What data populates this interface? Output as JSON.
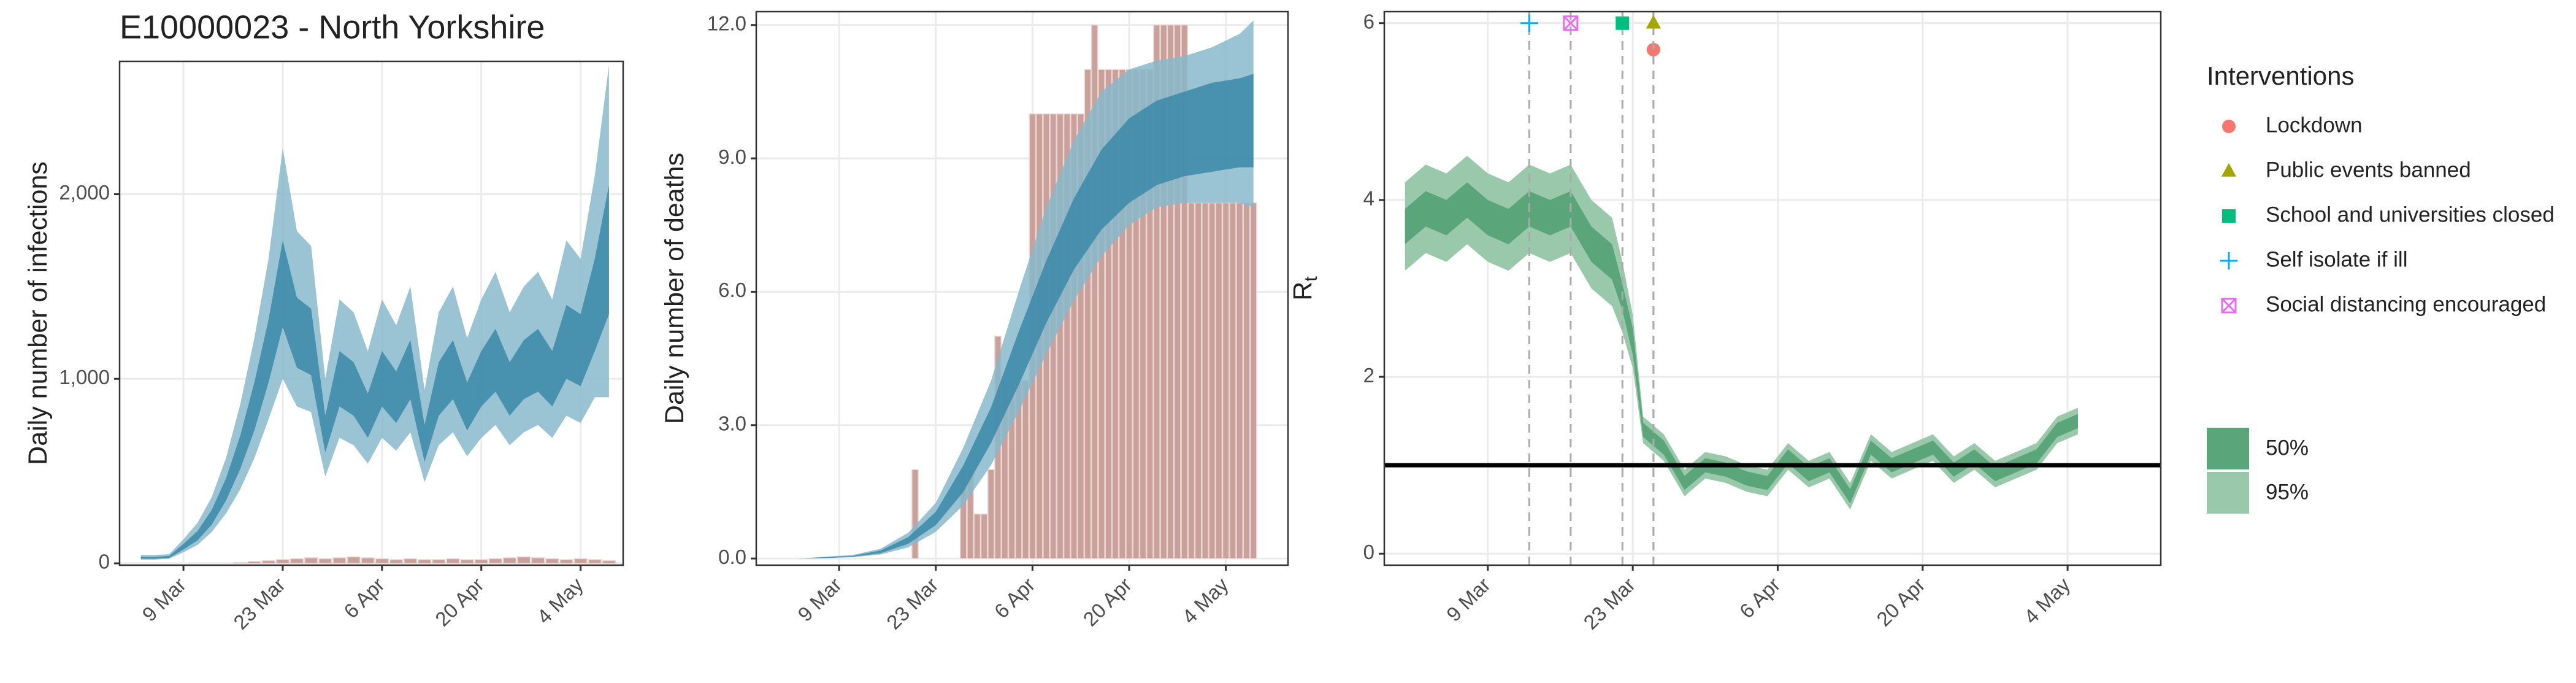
{
  "chart_data": [
    {
      "type": "band-bar",
      "title": "E10000023 - North Yorkshire",
      "ylabel": "Daily number of infections",
      "xlim": [
        "28 Feb",
        "10 May"
      ],
      "xticks": [
        "9 Mar",
        "23 Mar",
        "6 Apr",
        "20 Apr",
        "4 May"
      ],
      "ylim": [
        -10,
        2720
      ],
      "yticks": [
        0,
        {
          "value": 1000,
          "label": "1,000"
        },
        {
          "value": 2000,
          "label": "2,000"
        }
      ],
      "grid": true,
      "x": [
        "3 Mar",
        "5 Mar",
        "7 Mar",
        "9 Mar",
        "11 Mar",
        "13 Mar",
        "15 Mar",
        "17 Mar",
        "19 Mar",
        "21 Mar",
        "23 Mar",
        "25 Mar",
        "27 Mar",
        "29 Mar",
        "31 Mar",
        "2 Apr",
        "4 Apr",
        "6 Apr",
        "8 Apr",
        "10 Apr",
        "12 Apr",
        "14 Apr",
        "16 Apr",
        "18 Apr",
        "20 Apr",
        "22 Apr",
        "24 Apr",
        "26 Apr",
        "28 Apr",
        "30 Apr",
        "2 May",
        "4 May",
        "6 May",
        "8 May"
      ],
      "bars": {
        "color": "#c9a09a",
        "x": [
          "3 Mar",
          "5 Mar",
          "7 Mar",
          "9 Mar",
          "11 Mar",
          "13 Mar",
          "15 Mar",
          "17 Mar",
          "19 Mar",
          "21 Mar",
          "23 Mar",
          "25 Mar",
          "27 Mar",
          "29 Mar",
          "31 Mar",
          "2 Apr",
          "4 Apr",
          "6 Apr",
          "8 Apr",
          "10 Apr",
          "12 Apr",
          "14 Apr",
          "16 Apr",
          "18 Apr",
          "20 Apr",
          "22 Apr",
          "24 Apr",
          "26 Apr",
          "28 Apr",
          "30 Apr",
          "2 May",
          "4 May",
          "6 May",
          "8 May"
        ],
        "values": [
          0,
          0,
          0,
          0,
          0,
          0,
          0,
          5,
          10,
          15,
          20,
          25,
          30,
          25,
          30,
          35,
          30,
          25,
          20,
          25,
          20,
          20,
          25,
          20,
          20,
          25,
          30,
          35,
          30,
          25,
          20,
          25,
          20,
          15
        ]
      },
      "series": [
        {
          "color": "#88b8cb",
          "lower": [
            20,
            20,
            25,
            60,
            100,
            170,
            270,
            400,
            570,
            780,
            1000,
            850,
            820,
            470,
            680,
            640,
            540,
            680,
            610,
            710,
            440,
            640,
            710,
            580,
            680,
            750,
            640,
            710,
            750,
            680,
            800,
            760,
            900,
            900
          ],
          "upper": [
            45,
            45,
            50,
            130,
            220,
            360,
            570,
            860,
            1220,
            1650,
            2250,
            1800,
            1720,
            1000,
            1430,
            1360,
            1150,
            1430,
            1290,
            1500,
            940,
            1360,
            1500,
            1220,
            1430,
            1580,
            1360,
            1500,
            1580,
            1430,
            1750,
            1650,
            2100,
            2700
          ]
        },
        {
          "color": "#3a88a8",
          "lower": [
            25,
            25,
            30,
            75,
            125,
            210,
            340,
            510,
            720,
            980,
            1280,
            1060,
            1020,
            600,
            850,
            800,
            680,
            850,
            760,
            890,
            550,
            800,
            890,
            720,
            850,
            930,
            800,
            890,
            930,
            850,
            1000,
            960,
            1150,
            1350
          ],
          "upper": [
            35,
            35,
            40,
            105,
            175,
            290,
            460,
            690,
            980,
            1320,
            1750,
            1440,
            1380,
            800,
            1150,
            1090,
            920,
            1150,
            1040,
            1210,
            750,
            1090,
            1210,
            980,
            1150,
            1270,
            1090,
            1210,
            1270,
            1150,
            1400,
            1350,
            1650,
            2050
          ]
        }
      ]
    },
    {
      "type": "band-bar",
      "ylabel": "Daily number of deaths",
      "xlim": [
        "25 Feb",
        "13 May"
      ],
      "xticks": [
        "9 Mar",
        "23 Mar",
        "6 Apr",
        "20 Apr",
        "4 May"
      ],
      "ylim": [
        -0.15,
        12.3
      ],
      "yticks": [
        {
          "value": 0,
          "label": "0.0"
        },
        {
          "value": 3,
          "label": "3.0"
        },
        {
          "value": 6,
          "label": "6.0"
        },
        {
          "value": 9,
          "label": "9.0"
        },
        {
          "value": 12,
          "label": "12.0"
        }
      ],
      "grid": true,
      "x": [
        "3 Mar",
        "7 Mar",
        "11 Mar",
        "15 Mar",
        "19 Mar",
        "23 Mar",
        "27 Mar",
        "31 Mar",
        "4 Apr",
        "8 Apr",
        "12 Apr",
        "16 Apr",
        "20 Apr",
        "24 Apr",
        "28 Apr",
        "2 May",
        "6 May",
        "8 May"
      ],
      "bars": {
        "color": "#c9a09a",
        "x": [
          "20 Mar",
          "21 Mar",
          "22 Mar",
          "23 Mar",
          "24 Mar",
          "25 Mar",
          "26 Mar",
          "27 Mar",
          "28 Mar",
          "29 Mar",
          "30 Mar",
          "31 Mar",
          "1 Apr",
          "2 Apr",
          "3 Apr",
          "4 Apr",
          "5 Apr",
          "6 Apr",
          "7 Apr",
          "8 Apr",
          "9 Apr",
          "10 Apr",
          "11 Apr",
          "12 Apr",
          "13 Apr",
          "14 Apr",
          "15 Apr",
          "16 Apr",
          "17 Apr",
          "18 Apr",
          "19 Apr",
          "20 Apr",
          "21 Apr",
          "22 Apr",
          "23 Apr",
          "24 Apr",
          "25 Apr",
          "26 Apr",
          "27 Apr",
          "28 Apr",
          "29 Apr",
          "30 Apr",
          "1 May",
          "2 May",
          "3 May",
          "4 May",
          "5 May",
          "6 May",
          "7 May",
          "8 May"
        ],
        "values": [
          2,
          0,
          0,
          0,
          0,
          0,
          0,
          2,
          2,
          1,
          1,
          2,
          5,
          4,
          4,
          4,
          4,
          10,
          10,
          10,
          10,
          10,
          10,
          10,
          10,
          11,
          12,
          11,
          11,
          11,
          11,
          11,
          11,
          11,
          11,
          12,
          12,
          12,
          12,
          12,
          8,
          8,
          8,
          8,
          8,
          8,
          8,
          8,
          8,
          8
        ]
      },
      "series": [
        {
          "color": "#88b8cb",
          "lower": [
            0,
            0.01,
            0.03,
            0.09,
            0.25,
            0.6,
            1.2,
            2.1,
            3.3,
            4.6,
            5.8,
            6.8,
            7.5,
            7.9,
            8.0,
            8.0,
            8.0,
            7.9
          ],
          "upper": [
            0,
            0.04,
            0.08,
            0.22,
            0.58,
            1.25,
            2.5,
            4.0,
            6.0,
            7.9,
            9.4,
            10.5,
            11.0,
            11.2,
            11.3,
            11.5,
            11.8,
            12.1
          ]
        },
        {
          "color": "#3a88a8",
          "lower": [
            0,
            0.01,
            0.04,
            0.12,
            0.33,
            0.75,
            1.5,
            2.6,
            3.9,
            5.3,
            6.5,
            7.4,
            8.0,
            8.4,
            8.6,
            8.7,
            8.8,
            8.8
          ],
          "upper": [
            0,
            0.03,
            0.06,
            0.18,
            0.48,
            1.05,
            2.1,
            3.4,
            5.1,
            6.7,
            8.1,
            9.2,
            9.9,
            10.3,
            10.5,
            10.7,
            10.8,
            10.9
          ]
        }
      ]
    },
    {
      "type": "band-rt",
      "ylabel": "R",
      "ylabel_sub": "t",
      "xlim": [
        "27 Feb",
        "13 May"
      ],
      "xticks": [
        "9 Mar",
        "23 Mar",
        "6 Apr",
        "20 Apr",
        "4 May"
      ],
      "ylim": [
        -0.13,
        6.13
      ],
      "yticks": [
        0,
        2,
        4,
        6
      ],
      "grid": true,
      "hline": 1,
      "x": [
        "1 Mar",
        "3 Mar",
        "5 Mar",
        "7 Mar",
        "9 Mar",
        "11 Mar",
        "13 Mar",
        "15 Mar",
        "17 Mar",
        "19 Mar",
        "21 Mar",
        "22 Mar",
        "23 Mar",
        "24 Mar",
        "26 Mar",
        "28 Mar",
        "30 Mar",
        "1 Apr",
        "3 Apr",
        "5 Apr",
        "7 Apr",
        "9 Apr",
        "11 Apr",
        "13 Apr",
        "15 Apr",
        "17 Apr",
        "19 Apr",
        "21 Apr",
        "23 Apr",
        "25 Apr",
        "27 Apr",
        "29 Apr",
        "1 May",
        "3 May",
        "5 May"
      ],
      "series": [
        {
          "name": "95%",
          "color": "#99c9aa",
          "lower": [
            3.2,
            3.4,
            3.3,
            3.5,
            3.3,
            3.2,
            3.4,
            3.3,
            3.4,
            3.0,
            2.8,
            2.5,
            2.1,
            1.25,
            1.05,
            0.65,
            0.85,
            0.8,
            0.7,
            0.65,
            0.95,
            0.75,
            0.85,
            0.5,
            1.05,
            0.85,
            0.95,
            1.05,
            0.8,
            0.95,
            0.75,
            0.85,
            0.95,
            1.25,
            1.35
          ],
          "upper": [
            4.2,
            4.4,
            4.3,
            4.5,
            4.3,
            4.2,
            4.4,
            4.3,
            4.4,
            4.0,
            3.8,
            3.3,
            2.7,
            1.55,
            1.35,
            0.95,
            1.15,
            1.1,
            1.0,
            0.95,
            1.25,
            1.05,
            1.15,
            0.8,
            1.35,
            1.15,
            1.25,
            1.35,
            1.1,
            1.25,
            1.05,
            1.15,
            1.25,
            1.55,
            1.65
          ]
        },
        {
          "name": "50%",
          "color": "#5aa67a",
          "lower": [
            3.5,
            3.7,
            3.6,
            3.8,
            3.6,
            3.5,
            3.7,
            3.6,
            3.7,
            3.3,
            3.1,
            2.75,
            2.25,
            1.32,
            1.12,
            0.72,
            0.92,
            0.87,
            0.77,
            0.72,
            1.02,
            0.82,
            0.92,
            0.57,
            1.12,
            0.92,
            1.02,
            1.12,
            0.87,
            1.02,
            0.82,
            0.92,
            1.02,
            1.32,
            1.42
          ],
          "upper": [
            3.9,
            4.1,
            4.0,
            4.2,
            4.0,
            3.9,
            4.1,
            4.0,
            4.1,
            3.7,
            3.5,
            3.05,
            2.55,
            1.48,
            1.28,
            0.88,
            1.08,
            1.03,
            0.93,
            0.88,
            1.18,
            0.98,
            1.08,
            0.73,
            1.28,
            1.08,
            1.18,
            1.28,
            1.03,
            1.18,
            0.98,
            1.08,
            1.18,
            1.48,
            1.58
          ]
        }
      ],
      "interventions": {
        "title": "Interventions",
        "items": [
          {
            "name": "Lockdown",
            "date": "25 Mar",
            "value": 5.7,
            "color": "#F8766D",
            "shape": "circle"
          },
          {
            "name": "Public events banned",
            "date": "25 Mar",
            "value": 6.0,
            "color": "#A3A500",
            "shape": "triangle"
          },
          {
            "name": "School and universities closed",
            "date": "22 Mar",
            "value": 6.0,
            "color": "#00BF7D",
            "shape": "square"
          },
          {
            "name": "Self isolate if ill",
            "date": "13 Mar",
            "value": 6.0,
            "color": "#00B0F6",
            "shape": "plus"
          },
          {
            "name": "Social distancing encouraged",
            "date": "17 Mar",
            "value": 6.0,
            "color": "#E76BF3",
            "shape": "boxx"
          }
        ]
      }
    }
  ]
}
